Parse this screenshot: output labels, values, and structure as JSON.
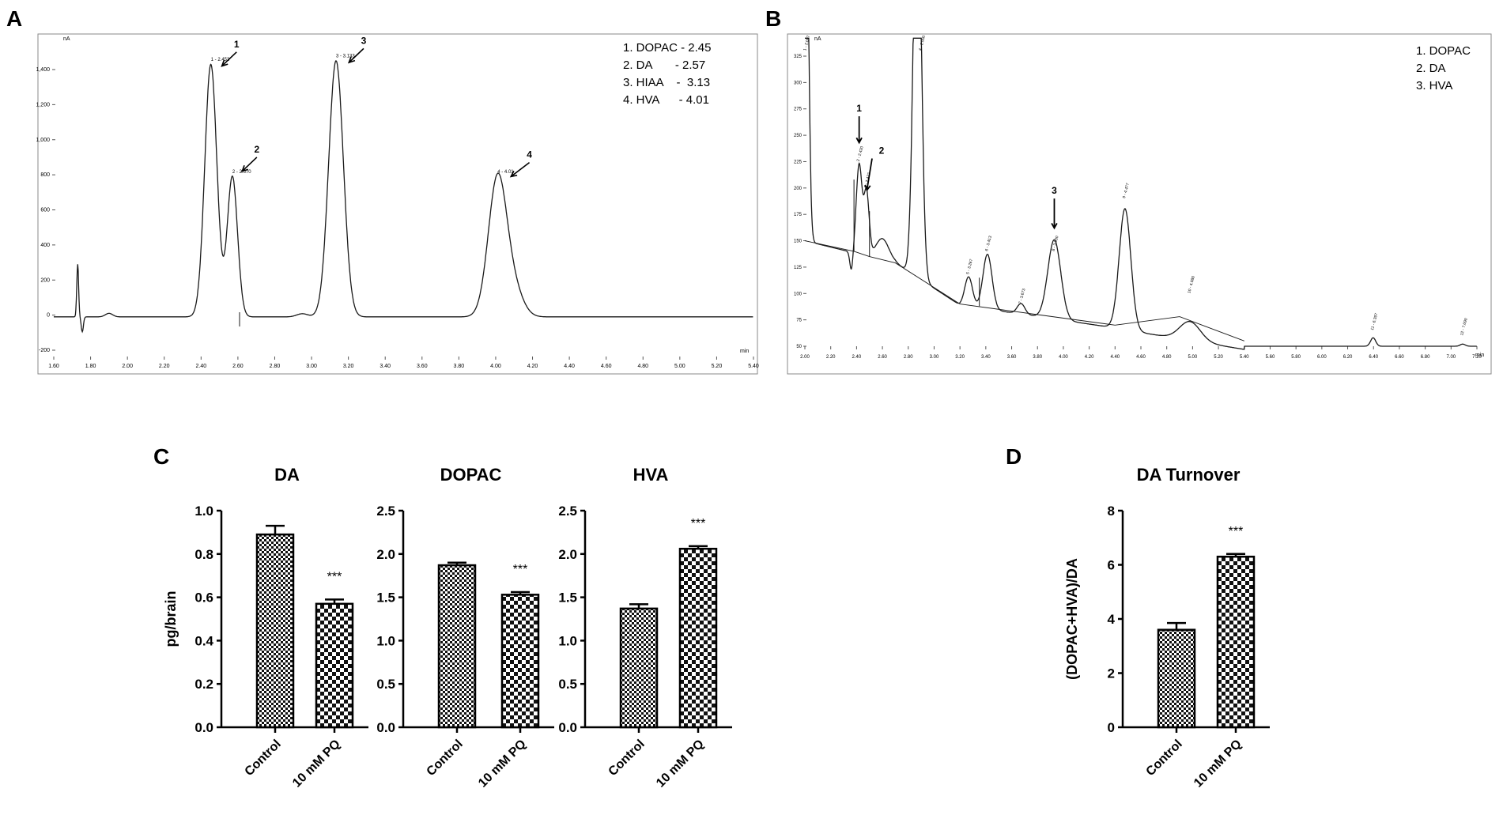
{
  "panels": {
    "a": {
      "letter": "A"
    },
    "b": {
      "letter": "B"
    },
    "c": {
      "letter": "C"
    },
    "d": {
      "letter": "D"
    }
  },
  "chromatogram_a": {
    "y_unit": "nA",
    "x_unit": "min",
    "y_ticks": [
      "-200",
      "0",
      "200",
      "400",
      "600",
      "800",
      "1,000",
      "1,200",
      "1,400"
    ],
    "x_ticks": [
      "1.60",
      "1.80",
      "2.00",
      "2.20",
      "2.40",
      "2.60",
      "2.80",
      "3.00",
      "3.20",
      "3.40",
      "3.60",
      "3.80",
      "4.00",
      "4.20",
      "4.40",
      "4.60",
      "4.80",
      "5.00",
      "5.20",
      "5.40"
    ],
    "legend": [
      "1. DOPAC - 2.45",
      "2. DA       - 2.57",
      "3. HIAA    -  3.13",
      "4. HVA      - 4.01"
    ],
    "peak_labels": [
      "1 - 2.453",
      "2 - 2.570",
      "3 - 3.133",
      "4 - 4.01"
    ],
    "arrow_numbers": [
      "1",
      "2",
      "3",
      "4"
    ]
  },
  "chromatogram_b": {
    "y_unit": "nA",
    "x_unit": "min",
    "y_ticks": [
      "50",
      "75",
      "100",
      "125",
      "150",
      "175",
      "200",
      "225",
      "250",
      "275",
      "300",
      "325"
    ],
    "x_ticks": [
      "2.00",
      "2.20",
      "2.40",
      "2.60",
      "2.80",
      "3.00",
      "3.20",
      "3.40",
      "3.60",
      "3.80",
      "4.00",
      "4.20",
      "4.40",
      "4.60",
      "4.80",
      "5.00",
      "5.20",
      "5.40",
      "5.60",
      "5.80",
      "6.00",
      "6.20",
      "6.40",
      "6.60",
      "6.80",
      "7.00",
      "7.20"
    ],
    "legend": [
      "1. DOPAC",
      "2. DA",
      "3. HVA"
    ],
    "peak_labels": [
      "1 - 2.007",
      "2 - 2.420",
      "3 - 2.477",
      "4 - 2.900",
      "5 - 3.267",
      "6 - 3.413",
      "7 - 3.673",
      "8 - 3.930",
      "9 - 4.477",
      "10 - 4.980",
      "11 - 6.397",
      "12 - 7.090"
    ],
    "arrow_numbers": [
      "1",
      "2",
      "3"
    ]
  },
  "chart_data": [
    {
      "type": "bar",
      "title": "DA",
      "ylabel": "pg/brain",
      "categories": [
        "Control",
        "10 mM PQ"
      ],
      "values": [
        0.89,
        0.57
      ],
      "errors": [
        0.04,
        0.02
      ],
      "ylim": [
        0,
        1.0
      ],
      "y_ticks": [
        "0.0",
        "0.2",
        "0.4",
        "0.6",
        "0.8",
        "1.0"
      ],
      "significance": "***"
    },
    {
      "type": "bar",
      "title": "DOPAC",
      "categories": [
        "Control",
        "10 mM PQ"
      ],
      "values": [
        1.87,
        1.53
      ],
      "errors": [
        0.03,
        0.03
      ],
      "ylim": [
        0,
        2.5
      ],
      "y_ticks": [
        "0.0",
        "0.5",
        "1.0",
        "1.5",
        "2.0",
        "2.5"
      ],
      "significance": "***"
    },
    {
      "type": "bar",
      "title": "HVA",
      "categories": [
        "Control",
        "10 mM PQ"
      ],
      "values": [
        1.37,
        2.06
      ],
      "errors": [
        0.05,
        0.03
      ],
      "ylim": [
        0,
        2.5
      ],
      "y_ticks": [
        "0.0",
        "0.5",
        "1.0",
        "1.5",
        "2.0",
        "2.5"
      ],
      "significance": "***"
    },
    {
      "type": "bar",
      "title": "DA Turnover",
      "ylabel": "(DOPAC+HVA)/DA",
      "categories": [
        "Control",
        "10 mM PQ"
      ],
      "values": [
        3.6,
        6.3
      ],
      "errors": [
        0.25,
        0.1
      ],
      "ylim": [
        0,
        8
      ],
      "y_ticks": [
        "0",
        "2",
        "4",
        "6",
        "8"
      ],
      "significance": "***"
    }
  ],
  "colors": {
    "ink": "#000000",
    "trace": "#1a1a1a",
    "pattern_dark": "#111111",
    "pattern_light": "#ffffff",
    "frame": "#666666"
  }
}
